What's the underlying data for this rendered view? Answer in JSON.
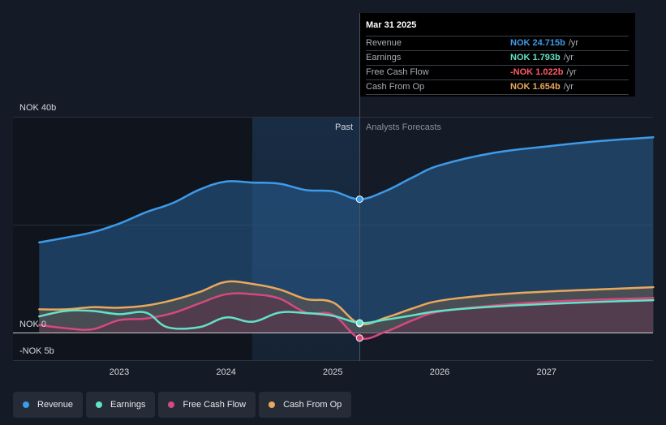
{
  "tooltip": {
    "date": "Mar 31 2025",
    "rows": [
      {
        "label": "Revenue",
        "value": "NOK 24.715b",
        "unit": "/yr",
        "color": "#3d9be9"
      },
      {
        "label": "Earnings",
        "value": "NOK 1.793b",
        "unit": "/yr",
        "color": "#63e2c9"
      },
      {
        "label": "Free Cash Flow",
        "value": "-NOK 1.022b",
        "unit": "/yr",
        "color": "#ff5a66"
      },
      {
        "label": "Cash From Op",
        "value": "NOK 1.654b",
        "unit": "/yr",
        "color": "#e8a95c"
      }
    ]
  },
  "legend": [
    {
      "label": "Revenue",
      "color": "#3d9be9"
    },
    {
      "label": "Earnings",
      "color": "#63e2c9"
    },
    {
      "label": "Free Cash Flow",
      "color": "#d6497e"
    },
    {
      "label": "Cash From Op",
      "color": "#e8a95c"
    }
  ],
  "chart_data": {
    "type": "line",
    "unit": "NOK b",
    "ylim": [
      -5,
      40
    ],
    "y_labels": [
      {
        "value": 40,
        "label": "NOK 40b"
      },
      {
        "value": 0,
        "label": "NOK 0"
      },
      {
        "value": -5,
        "label": "-NOK 5b"
      }
    ],
    "xlim": [
      2022.3,
      2028.0
    ],
    "x_ticks": [
      2023,
      2024,
      2025,
      2026,
      2027
    ],
    "x_tick_labels": [
      "2023",
      "2024",
      "2025",
      "2026",
      "2027"
    ],
    "past_label": "Past",
    "forecast_label": "Analysts Forecasts",
    "divider_x": 2025.25,
    "highlight_start": 2024.25,
    "series": [
      {
        "name": "Revenue",
        "color": "#3d9be9",
        "area": true,
        "points": [
          [
            2022.25,
            16.7
          ],
          [
            2022.5,
            17.6
          ],
          [
            2022.75,
            18.6
          ],
          [
            2023.0,
            20.2
          ],
          [
            2023.25,
            22.3
          ],
          [
            2023.5,
            24.0
          ],
          [
            2023.75,
            26.5
          ],
          [
            2024.0,
            28.0
          ],
          [
            2024.25,
            27.8
          ],
          [
            2024.5,
            27.6
          ],
          [
            2024.75,
            26.4
          ],
          [
            2025.0,
            26.2
          ],
          [
            2025.25,
            24.715
          ],
          [
            2025.5,
            26.3
          ],
          [
            2025.75,
            28.8
          ],
          [
            2026.0,
            31.0
          ],
          [
            2026.5,
            33.3
          ],
          [
            2027.0,
            34.5
          ],
          [
            2027.5,
            35.5
          ],
          [
            2028.0,
            36.2
          ]
        ]
      },
      {
        "name": "Cash From Op",
        "color": "#e8a95c",
        "area": true,
        "points": [
          [
            2022.25,
            4.3
          ],
          [
            2022.5,
            4.3
          ],
          [
            2022.75,
            4.7
          ],
          [
            2023.0,
            4.6
          ],
          [
            2023.25,
            5.0
          ],
          [
            2023.5,
            6.0
          ],
          [
            2023.75,
            7.5
          ],
          [
            2024.0,
            9.4
          ],
          [
            2024.25,
            9.0
          ],
          [
            2024.5,
            8.0
          ],
          [
            2024.75,
            6.2
          ],
          [
            2025.0,
            5.6
          ],
          [
            2025.25,
            1.654
          ],
          [
            2025.5,
            2.8
          ],
          [
            2025.75,
            4.5
          ],
          [
            2026.0,
            5.9
          ],
          [
            2026.5,
            7.0
          ],
          [
            2027.0,
            7.6
          ],
          [
            2027.5,
            8.0
          ],
          [
            2028.0,
            8.4
          ]
        ]
      },
      {
        "name": "Free Cash Flow",
        "color": "#d6497e",
        "area": true,
        "points": [
          [
            2022.25,
            1.4
          ],
          [
            2022.5,
            0.8
          ],
          [
            2022.75,
            0.6
          ],
          [
            2023.0,
            2.3
          ],
          [
            2023.25,
            2.6
          ],
          [
            2023.5,
            3.6
          ],
          [
            2023.75,
            5.4
          ],
          [
            2024.0,
            7.1
          ],
          [
            2024.25,
            7.1
          ],
          [
            2024.5,
            6.3
          ],
          [
            2024.75,
            3.7
          ],
          [
            2025.0,
            3.3
          ],
          [
            2025.25,
            -1.022
          ],
          [
            2025.5,
            0.2
          ],
          [
            2025.75,
            2.3
          ],
          [
            2026.0,
            3.9
          ],
          [
            2026.5,
            5.0
          ],
          [
            2027.0,
            5.7
          ],
          [
            2027.5,
            6.1
          ],
          [
            2028.0,
            6.4
          ]
        ]
      },
      {
        "name": "Earnings",
        "color": "#63e2c9",
        "area": false,
        "points": [
          [
            2022.25,
            3.0
          ],
          [
            2022.5,
            4.0
          ],
          [
            2022.75,
            4.0
          ],
          [
            2023.0,
            3.4
          ],
          [
            2023.25,
            3.7
          ],
          [
            2023.45,
            1.0
          ],
          [
            2023.75,
            1.0
          ],
          [
            2024.0,
            2.8
          ],
          [
            2024.25,
            2.0
          ],
          [
            2024.5,
            3.7
          ],
          [
            2024.75,
            3.6
          ],
          [
            2025.0,
            3.1
          ],
          [
            2025.25,
            1.793
          ],
          [
            2025.5,
            2.4
          ],
          [
            2025.75,
            3.2
          ],
          [
            2026.0,
            4.0
          ],
          [
            2026.5,
            4.8
          ],
          [
            2027.0,
            5.3
          ],
          [
            2027.5,
            5.7
          ],
          [
            2028.0,
            6.0
          ]
        ]
      }
    ],
    "markers_x": 2025.25
  }
}
